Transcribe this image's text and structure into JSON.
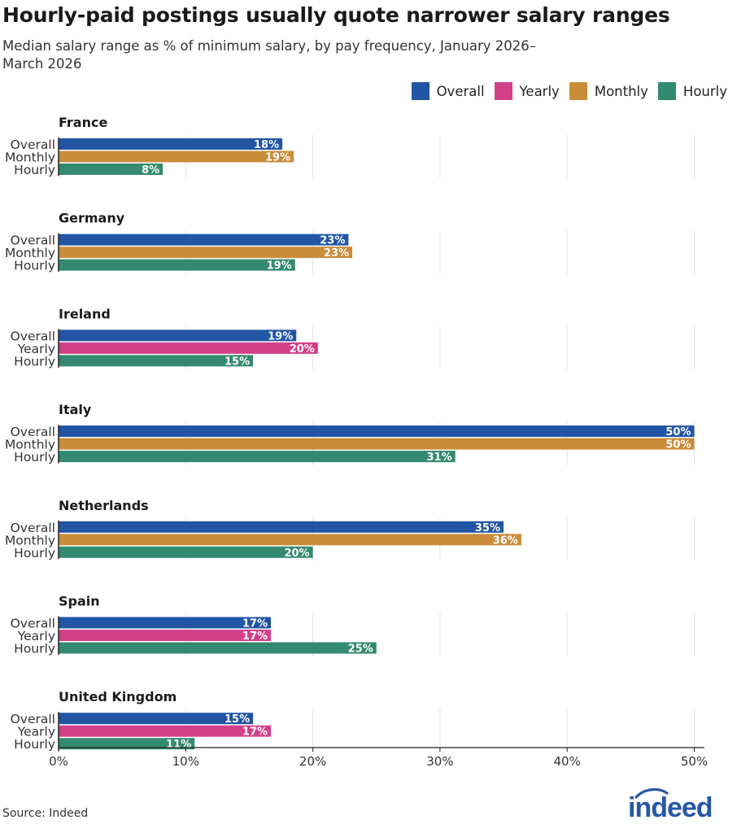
{
  "title": "Hourly-paid postings usually quote narrower salary ranges",
  "subtitle": "Median salary range as % of minimum salary, by pay frequency, January 2026–March 2026",
  "source": "Source: Indeed",
  "logo_text": "indeed",
  "colors": {
    "Overall": "#2255a4",
    "Yearly": "#d2408a",
    "Monthly": "#c98c38",
    "Hourly": "#348a70",
    "grid": "#e0e0e0",
    "axis": "#222222",
    "logo": "#2557a7"
  },
  "legend": [
    {
      "name": "Overall",
      "icon": "square"
    },
    {
      "name": "Yearly",
      "icon": "square"
    },
    {
      "name": "Monthly",
      "icon": "square"
    },
    {
      "name": "Hourly",
      "icon": "square"
    }
  ],
  "chart_data": {
    "type": "bar",
    "orientation": "horizontal",
    "grouped_by": "country",
    "title": "Hourly-paid postings usually quote narrower salary ranges",
    "subtitle": "Median salary range as % of minimum salary, by pay frequency, January 2026–March 2026",
    "xlim": [
      0,
      50
    ],
    "x_ticks": [
      0,
      10,
      20,
      30,
      40,
      50
    ],
    "x_tick_labels": [
      "0%",
      "10%",
      "20%",
      "30%",
      "40%",
      "50%"
    ],
    "grid": "vertical",
    "legend_position": "top-right",
    "groups": [
      {
        "name": "France",
        "bars": [
          {
            "series": "Overall",
            "label": "Overall",
            "value": 17.6,
            "value_label": "18%"
          },
          {
            "series": "Monthly",
            "label": "Monthly",
            "value": 18.5,
            "value_label": "19%"
          },
          {
            "series": "Hourly",
            "label": "Hourly",
            "value": 8.2,
            "value_label": "8%"
          }
        ]
      },
      {
        "name": "Germany",
        "bars": [
          {
            "series": "Overall",
            "label": "Overall",
            "value": 22.8,
            "value_label": "23%"
          },
          {
            "series": "Monthly",
            "label": "Monthly",
            "value": 23.1,
            "value_label": "23%"
          },
          {
            "series": "Hourly",
            "label": "Hourly",
            "value": 18.6,
            "value_label": "19%"
          }
        ]
      },
      {
        "name": "Ireland",
        "bars": [
          {
            "series": "Overall",
            "label": "Overall",
            "value": 18.7,
            "value_label": "19%"
          },
          {
            "series": "Yearly",
            "label": "Yearly",
            "value": 20.4,
            "value_label": "20%"
          },
          {
            "series": "Hourly",
            "label": "Hourly",
            "value": 15.3,
            "value_label": "15%"
          }
        ]
      },
      {
        "name": "Italy",
        "bars": [
          {
            "series": "Overall",
            "label": "Overall",
            "value": 50.0,
            "value_label": "50%"
          },
          {
            "series": "Monthly",
            "label": "Monthly",
            "value": 50.0,
            "value_label": "50%"
          },
          {
            "series": "Hourly",
            "label": "Hourly",
            "value": 31.2,
            "value_label": "31%"
          }
        ]
      },
      {
        "name": "Netherlands",
        "bars": [
          {
            "series": "Overall",
            "label": "Overall",
            "value": 35.0,
            "value_label": "35%"
          },
          {
            "series": "Monthly",
            "label": "Monthly",
            "value": 36.4,
            "value_label": "36%"
          },
          {
            "series": "Hourly",
            "label": "Hourly",
            "value": 20.0,
            "value_label": "20%"
          }
        ]
      },
      {
        "name": "Spain",
        "bars": [
          {
            "series": "Overall",
            "label": "Overall",
            "value": 16.7,
            "value_label": "17%"
          },
          {
            "series": "Yearly",
            "label": "Yearly",
            "value": 16.7,
            "value_label": "17%"
          },
          {
            "series": "Hourly",
            "label": "Hourly",
            "value": 25.0,
            "value_label": "25%"
          }
        ]
      },
      {
        "name": "United Kingdom",
        "bars": [
          {
            "series": "Overall",
            "label": "Overall",
            "value": 15.3,
            "value_label": "15%"
          },
          {
            "series": "Yearly",
            "label": "Yearly",
            "value": 16.7,
            "value_label": "17%"
          },
          {
            "series": "Hourly",
            "label": "Hourly",
            "value": 10.7,
            "value_label": "11%"
          }
        ]
      }
    ]
  }
}
